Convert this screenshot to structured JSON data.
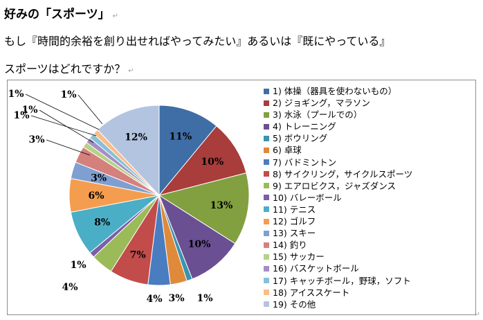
{
  "heading": "好みの「スポーツ」",
  "question": {
    "line1": "もし『時間的余裕を創り出せればやってみたい』あるいは『既にやっている』",
    "line2": "スポーツはどれですか？"
  },
  "paragraph_mark": "↵",
  "chart_data": {
    "type": "pie",
    "title": "",
    "start_angle_deg": 0,
    "direction": "clockwise",
    "categories": [
      "1) 体操（器具を使わないもの）",
      "2) ジョギング，マラソン",
      "3) 水泳（プールでの）",
      "4) トレーニング",
      "5) ボウリング",
      "6) 卓球",
      "7) バドミントン",
      "8) サイクリング，サイクルスポーツ",
      "9) エアロビクス，ジャズダンス",
      "10) バレーボール",
      "11) テニス",
      "12) ゴルフ",
      "13) スキー",
      "14) 釣り",
      "15) サッカー",
      "16) バスケットボール",
      "17) キャッチボール，野球，ソフト",
      "18) アイススケート",
      "19) その他"
    ],
    "values": [
      11,
      10,
      13,
      10,
      1,
      3,
      4,
      7,
      4,
      1,
      8,
      6,
      3,
      3,
      1,
      1,
      1,
      1,
      12
    ],
    "data_labels": [
      "11%",
      "10%",
      "13%",
      "10%",
      "1%",
      "3%",
      "4%",
      "7%",
      "4%",
      "1%",
      "8%",
      "6%",
      "3%",
      "3%",
      "1%",
      "1%",
      "1%",
      "1%",
      "12%"
    ],
    "colors": [
      "#3f6ea6",
      "#a83d3b",
      "#82a040",
      "#6b4f93",
      "#3b93ad",
      "#df8a3b",
      "#4a7cc0",
      "#c24c4a",
      "#9bbb59",
      "#7a5fa8",
      "#4aaec6",
      "#f59d4f",
      "#7f9fd0",
      "#d6807e",
      "#b6d286",
      "#a58ec6",
      "#86c1d6",
      "#f9bc8a",
      "#b3c4e0"
    ],
    "legend_position": "right"
  }
}
